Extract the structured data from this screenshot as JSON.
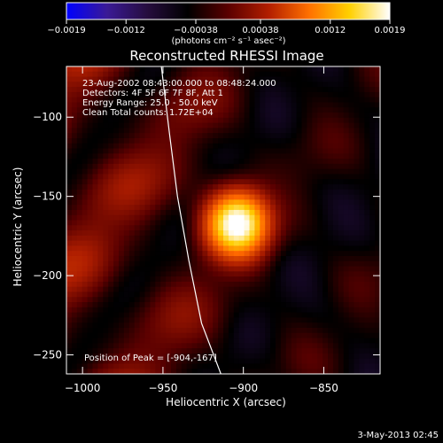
{
  "chart_data": {
    "type": "heatmap",
    "title": "Reconstructed RHESSI Image",
    "xlabel": "Heliocentric X (arcsec)",
    "ylabel": "Heliocentric Y (arcsec)",
    "xlim": [
      -1010,
      -815
    ],
    "ylim": [
      -262,
      -68
    ],
    "x_ticks": [
      {
        "value": -1000,
        "label": "−1000"
      },
      {
        "value": -950,
        "label": "−950"
      },
      {
        "value": -900,
        "label": "−900"
      },
      {
        "value": -850,
        "label": "−850"
      }
    ],
    "y_ticks": [
      {
        "value": -100,
        "label": "−100"
      },
      {
        "value": -150,
        "label": "−150"
      },
      {
        "value": -200,
        "label": "−200"
      },
      {
        "value": -250,
        "label": "−250"
      }
    ],
    "colorbar": {
      "min": -0.0019,
      "max": 0.0019,
      "ticks": [
        {
          "value": -0.0019,
          "label": "−0.0019"
        },
        {
          "value": -0.0012,
          "label": "−0.0012"
        },
        {
          "value": -0.00038,
          "label": "−0.00038"
        },
        {
          "value": 0.00038,
          "label": "0.00038"
        },
        {
          "value": 0.0012,
          "label": "0.0012"
        },
        {
          "value": 0.0019,
          "label": "0.0019"
        }
      ],
      "unit_label": "(photons cm⁻² s⁻¹ asec⁻²)",
      "colors": [
        "#0000ff",
        "#3a1a96",
        "#260d3e",
        "#000000",
        "#5a0000",
        "#b21e00",
        "#ff7000",
        "#ffd000",
        "#ffffff"
      ]
    },
    "annotations": [
      "23-Aug-2002 08:43:00.000 to 08:48:24.000",
      "Detectors: 4F 5F 6F 7F 8F, Att 1",
      "Energy Range: 25.0 - 50.0 keV",
      "Clean    Total counts: 1.72E+04"
    ],
    "peak_label": "Position of Peak = [-904,-167]",
    "peak": {
      "x": -904,
      "y": -167,
      "value": 0.0019
    },
    "limb_curve": [
      {
        "x": -951,
        "y": -68
      },
      {
        "x": -946,
        "y": -110
      },
      {
        "x": -941,
        "y": -150
      },
      {
        "x": -934,
        "y": -190
      },
      {
        "x": -926,
        "y": -230
      },
      {
        "x": -914,
        "y": -262
      }
    ]
  },
  "footer_date": "3-May-2013 02:45"
}
